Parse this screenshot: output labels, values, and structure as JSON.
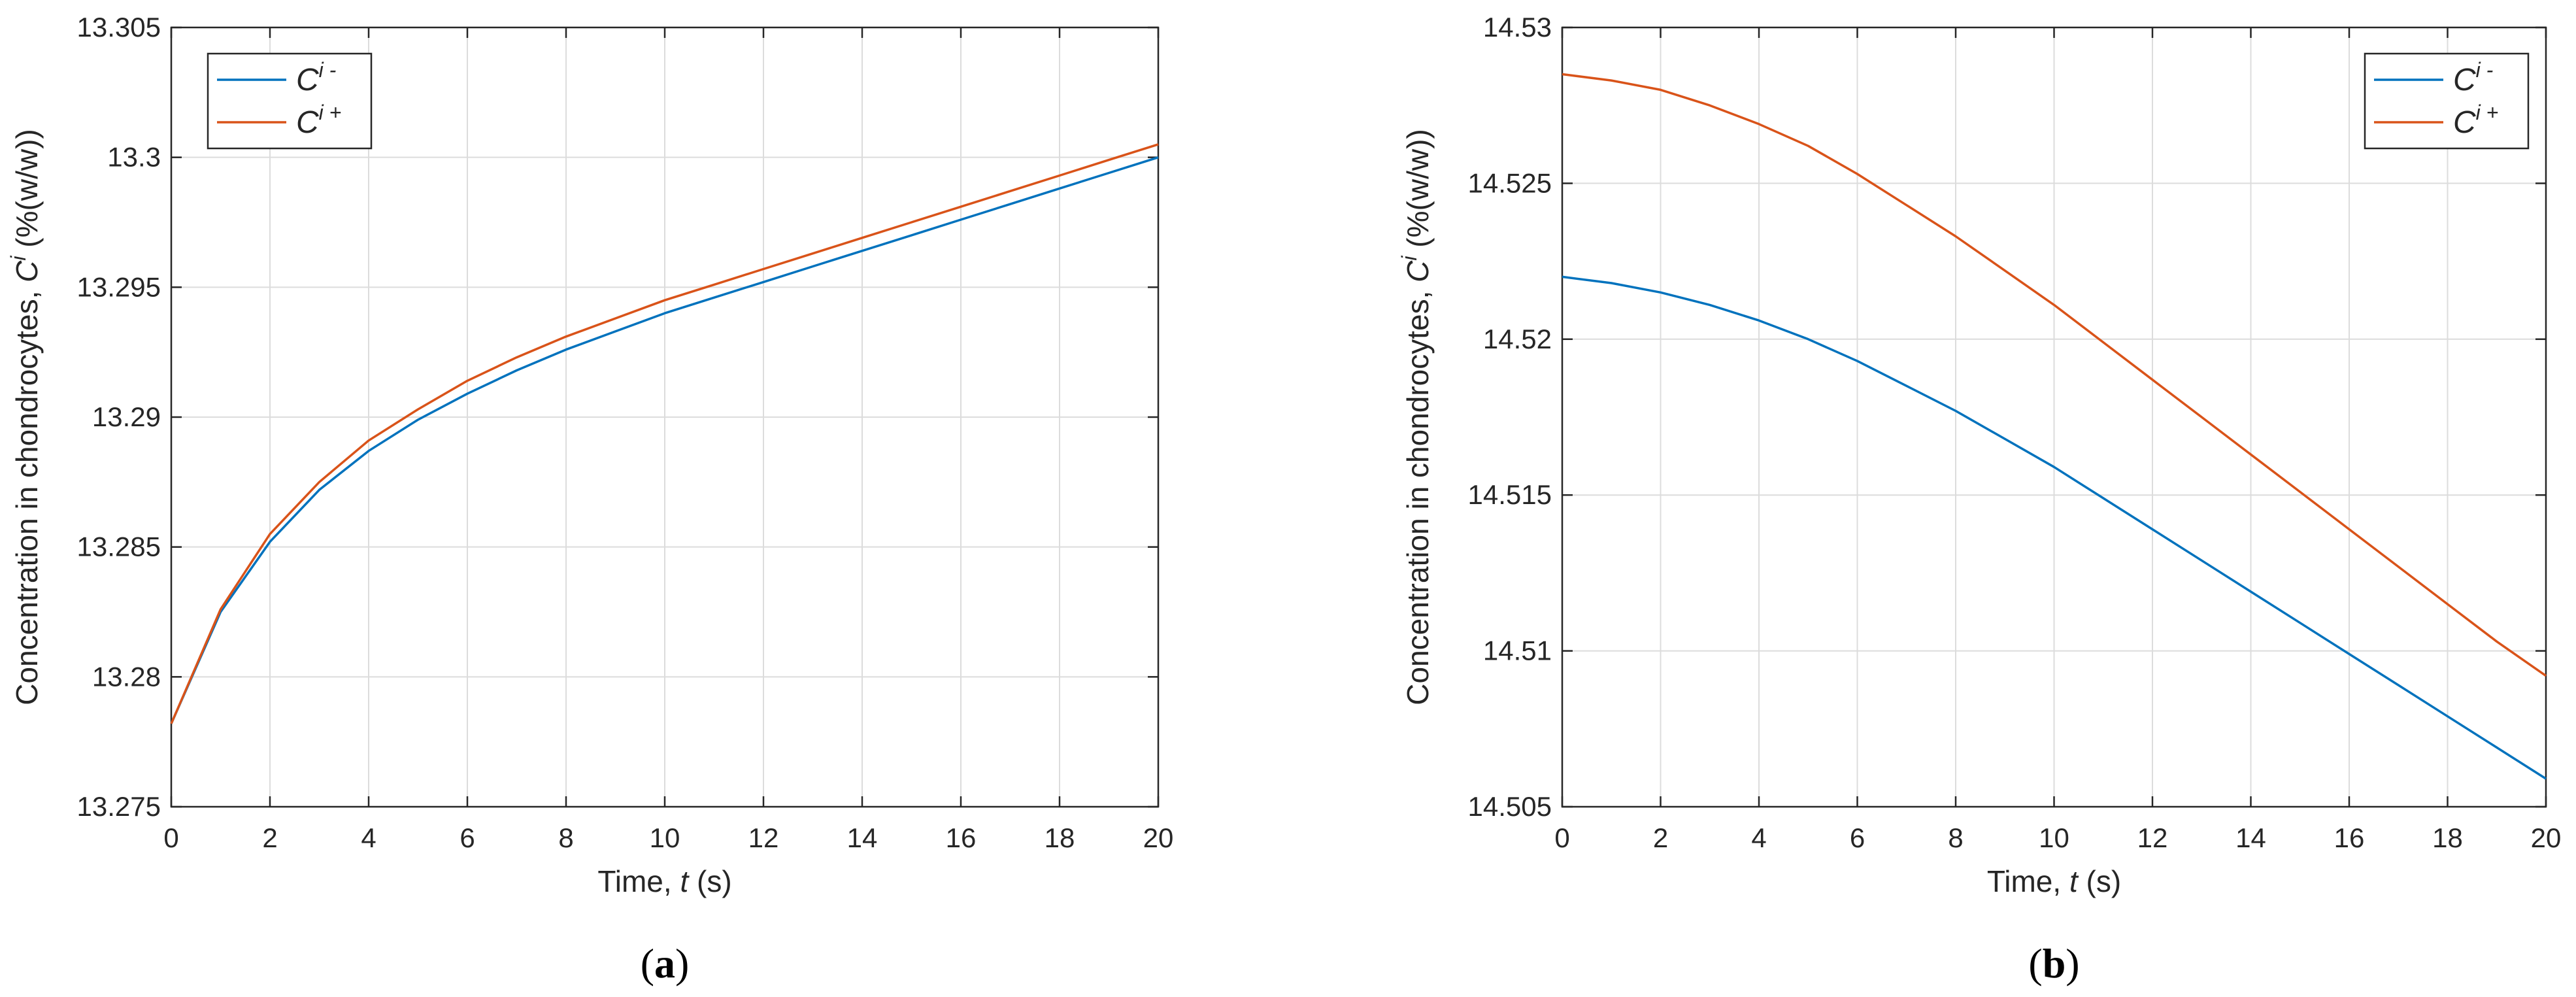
{
  "colors": {
    "series1": "#0072BD",
    "series2": "#D95319",
    "grid": "#dcdcdc",
    "axis": "#262626"
  },
  "chart_data": [
    {
      "type": "line",
      "panel_label": {
        "open": "(",
        "letter": "a",
        "close": ")"
      },
      "xlabel": {
        "main": "Time, ",
        "var": "t",
        "unit": " (s)"
      },
      "ylabel": {
        "main": "Concentration in chondrocytes, ",
        "var": "C",
        "sup": "i",
        "unit": " (%(w/w))"
      },
      "xlim": [
        0,
        20
      ],
      "ylim": [
        13.275,
        13.305
      ],
      "xticks": [
        0,
        2,
        4,
        6,
        8,
        10,
        12,
        14,
        16,
        18,
        20
      ],
      "yticks": [
        13.275,
        13.28,
        13.285,
        13.29,
        13.295,
        13.3,
        13.305
      ],
      "ytick_labels": [
        "13.275",
        "13.28",
        "13.285",
        "13.29",
        "13.295",
        "13.3",
        "13.305"
      ],
      "grid": true,
      "legend_position": "top-left",
      "x": [
        0,
        1,
        2,
        3,
        4,
        5,
        6,
        7,
        8,
        9,
        10,
        11,
        12,
        13,
        14,
        15,
        16,
        17,
        18,
        19,
        20
      ],
      "series": [
        {
          "name": {
            "base": "C",
            "sup": "i -"
          },
          "color": "#0072BD",
          "values": [
            13.2782,
            13.2825,
            13.2852,
            13.2872,
            13.2887,
            13.2899,
            13.2909,
            13.2918,
            13.2926,
            13.2933,
            13.294,
            13.2946,
            13.2952,
            13.2958,
            13.2964,
            13.297,
            13.2976,
            13.2982,
            13.2988,
            13.2994,
            13.3
          ]
        },
        {
          "name": {
            "base": "C",
            "sup": "i +"
          },
          "color": "#D95319",
          "values": [
            13.2782,
            13.2826,
            13.2855,
            13.2875,
            13.2891,
            13.2903,
            13.2914,
            13.2923,
            13.2931,
            13.2938,
            13.2945,
            13.2951,
            13.2957,
            13.2963,
            13.2969,
            13.2975,
            13.2981,
            13.2987,
            13.2993,
            13.2999,
            13.3005
          ]
        }
      ]
    },
    {
      "type": "line",
      "panel_label": {
        "open": "(",
        "letter": "b",
        "close": ")"
      },
      "xlabel": {
        "main": "Time, ",
        "var": "t",
        "unit": " (s)"
      },
      "ylabel": {
        "main": "Concentration in chondrocytes, ",
        "var": "C",
        "sup": "i",
        "unit": " (%(w/w))"
      },
      "xlim": [
        0,
        20
      ],
      "ylim": [
        14.505,
        14.53
      ],
      "xticks": [
        0,
        2,
        4,
        6,
        8,
        10,
        12,
        14,
        16,
        18,
        20
      ],
      "yticks": [
        14.505,
        14.51,
        14.515,
        14.52,
        14.525,
        14.53
      ],
      "ytick_labels": [
        "14.505",
        "14.51",
        "14.515",
        "14.52",
        "14.525",
        "14.53"
      ],
      "grid": true,
      "legend_position": "top-right",
      "x": [
        0,
        1,
        2,
        3,
        4,
        5,
        6,
        7,
        8,
        9,
        10,
        11,
        12,
        13,
        14,
        15,
        16,
        17,
        18,
        19,
        20
      ],
      "series": [
        {
          "name": {
            "base": "C",
            "sup": "i -"
          },
          "color": "#0072BD",
          "values": [
            14.522,
            14.5218,
            14.5215,
            14.5211,
            14.5206,
            14.52,
            14.5193,
            14.5185,
            14.5177,
            14.5168,
            14.5159,
            14.5149,
            14.5139,
            14.5129,
            14.5119,
            14.5109,
            14.5099,
            14.5089,
            14.5079,
            14.5069,
            14.5059
          ]
        },
        {
          "name": {
            "base": "C",
            "sup": "i +"
          },
          "color": "#D95319",
          "values": [
            14.5285,
            14.5283,
            14.528,
            14.5275,
            14.5269,
            14.5262,
            14.5253,
            14.5243,
            14.5233,
            14.5222,
            14.5211,
            14.5199,
            14.5187,
            14.5175,
            14.5163,
            14.5151,
            14.5139,
            14.5127,
            14.5115,
            14.5103,
            14.5092
          ]
        }
      ]
    }
  ]
}
